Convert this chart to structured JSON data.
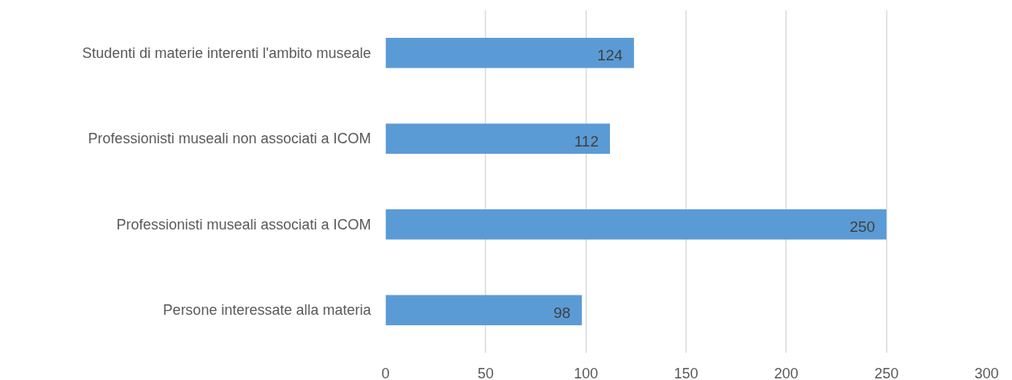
{
  "chart_data": {
    "type": "bar",
    "orientation": "horizontal",
    "categories": [
      "Studenti di materie interenti l'ambito museale",
      "Professionisti museali non associati a ICOM",
      "Professionisti museali associati a ICOM",
      "Persone interessate alla materia"
    ],
    "values": [
      124,
      112,
      250,
      98
    ],
    "color": "#5b9bd5",
    "xlim": [
      0,
      300
    ],
    "xticks": [
      0,
      50,
      100,
      150,
      200,
      250,
      300
    ],
    "grid": "x",
    "data_labels": true
  }
}
